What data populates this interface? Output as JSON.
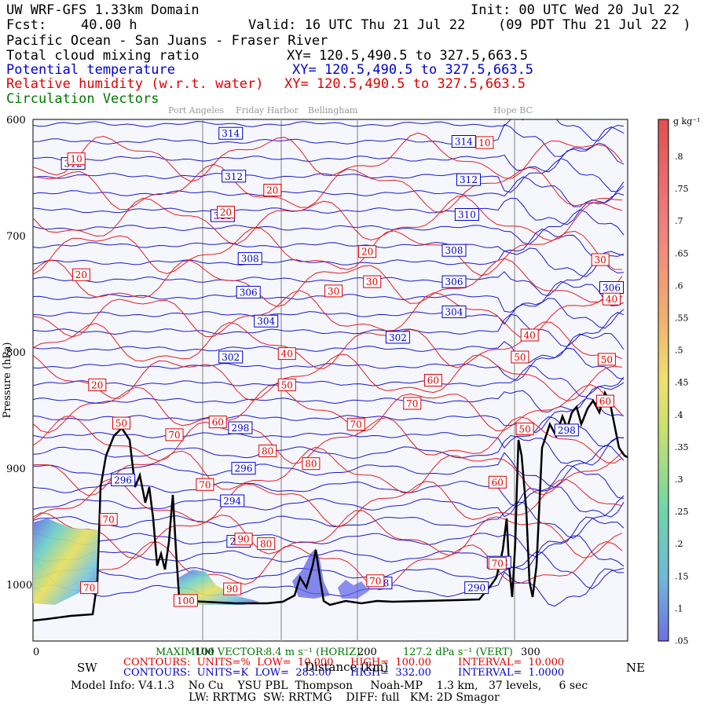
{
  "header": {
    "model": "UW WRF-GFS 1.33km Domain",
    "init": "Init: 00 UTC Wed 20 Jul 22",
    "fcst_label": "Fcst:",
    "fcst_value": "40.00 h",
    "valid": "Valid: 16 UTC Thu 21 Jul 22",
    "valid_local": "(09 PDT Thu 21 Jul 22  )",
    "region": "Pacific Ocean - San Juans - Fraser River",
    "field1": "Total cloud mixing ratio",
    "field1_xy": "XY= 120.5,490.5 to 327.5,663.5",
    "field2": "Potential temperature",
    "field2_xy": "XY= 120.5,490.5 to 327.5,663.5",
    "field3": "Relative humidity (w.r.t. water)",
    "field3_xy": "XY= 120.5,490.5 to 327.5,663.5",
    "field4": "Circulation Vectors"
  },
  "places": [
    "Port Angeles",
    "Friday Harbor",
    "Bellingham",
    "Hope BC"
  ],
  "footer": {
    "vector_prefix": "MAXIMUM VECTOR:",
    "vector_horiz": "8.4 m s⁻¹ (HORIZ)",
    "vector_vert": "127.2 dPa s⁻¹ (VERT)",
    "contours_red": "CONTOURS:  UNITS=%  LOW=  10.000",
    "contours_red_high": "HIGH=  100.00",
    "contours_red_int": "INTERVAL=  10.000",
    "contours_blue": "CONTOURS:  UNITS=K  LOW=  283.00",
    "contours_blue_high": "HIGH=  332.00",
    "contours_blue_int": "INTERVAL=  1.0000",
    "left_dir": "SW",
    "right_dir": "NE",
    "xlabel": "Distance (km)",
    "model_info": "Model Info: V4.1.3    No Cu    YSU PBL  Thompson     Noah-MP    1.3 km,   37 levels,     6 sec",
    "model_info2": "LW: RRTMG  SW: RRTMG    DIFF: full   KM: 2D Smagor"
  },
  "colorbar": {
    "unit": "g kg⁻¹",
    "ticks": [
      ".8",
      ".75",
      ".7",
      ".65",
      ".6",
      ".55",
      ".5",
      ".45",
      ".4",
      ".35",
      ".3",
      ".25",
      ".2",
      ".15",
      ".1",
      ".05"
    ]
  },
  "chart_data": {
    "type": "cross-section contour",
    "ylabel": "Pressure (hPa)",
    "xlabel": "Distance (km)",
    "y_ticks": [
      "600",
      "700",
      "800",
      "900",
      "1000"
    ],
    "x_ticks": [
      "0",
      "100",
      "200",
      "300"
    ],
    "ylim": [
      1050,
      600
    ],
    "xlim": [
      0,
      370
    ],
    "theta_labels": [
      {
        "v": "314",
        "x": 123,
        "p": 612
      },
      {
        "v": "314",
        "x": 268,
        "p": 619
      },
      {
        "v": "312",
        "x": 25,
        "p": 638
      },
      {
        "v": "312",
        "x": 125,
        "p": 649
      },
      {
        "v": "312",
        "x": 271,
        "p": 652
      },
      {
        "v": "310",
        "x": 118,
        "p": 683
      },
      {
        "v": "310",
        "x": 270,
        "p": 682
      },
      {
        "v": "308",
        "x": 135,
        "p": 720
      },
      {
        "v": "308",
        "x": 262,
        "p": 713
      },
      {
        "v": "306",
        "x": 134,
        "p": 749
      },
      {
        "v": "306",
        "x": 262,
        "p": 740
      },
      {
        "v": "306",
        "x": 360,
        "p": 745
      },
      {
        "v": "304",
        "x": 145,
        "p": 774
      },
      {
        "v": "304",
        "x": 262,
        "p": 766
      },
      {
        "v": "302",
        "x": 123,
        "p": 805
      },
      {
        "v": "302",
        "x": 227,
        "p": 788
      },
      {
        "v": "298",
        "x": 129,
        "p": 866
      },
      {
        "v": "298",
        "x": 332,
        "p": 868
      },
      {
        "v": "296",
        "x": 56,
        "p": 911
      },
      {
        "v": "296",
        "x": 131,
        "p": 901
      },
      {
        "v": "294",
        "x": 124,
        "p": 929
      },
      {
        "v": "290",
        "x": 128,
        "p": 964
      },
      {
        "v": "288",
        "x": 216,
        "p": 1000
      },
      {
        "v": "290",
        "x": 276,
        "p": 1004
      },
      {
        "v": "292",
        "x": 290,
        "p": 982
      }
    ],
    "rh_labels": [
      {
        "v": "10",
        "x": 281,
        "p": 620
      },
      {
        "v": "10",
        "x": 27,
        "p": 634
      },
      {
        "v": "20",
        "x": 149,
        "p": 661
      },
      {
        "v": "20",
        "x": 120,
        "p": 680
      },
      {
        "v": "20",
        "x": 208,
        "p": 714
      },
      {
        "v": "20",
        "x": 30,
        "p": 734
      },
      {
        "v": "30",
        "x": 211,
        "p": 740
      },
      {
        "v": "30",
        "x": 187,
        "p": 748
      },
      {
        "v": "30",
        "x": 353,
        "p": 721
      },
      {
        "v": "40",
        "x": 360,
        "p": 755
      },
      {
        "v": "40",
        "x": 309,
        "p": 786
      },
      {
        "v": "40",
        "x": 158,
        "p": 802
      },
      {
        "v": "50",
        "x": 303,
        "p": 805
      },
      {
        "v": "50",
        "x": 357,
        "p": 807
      },
      {
        "v": "20",
        "x": 40,
        "p": 829
      },
      {
        "v": "50",
        "x": 158,
        "p": 829
      },
      {
        "v": "60",
        "x": 249,
        "p": 825
      },
      {
        "v": "70",
        "x": 236,
        "p": 845
      },
      {
        "v": "60",
        "x": 356,
        "p": 843
      },
      {
        "v": "50",
        "x": 55,
        "p": 862
      },
      {
        "v": "60",
        "x": 115,
        "p": 861
      },
      {
        "v": "70",
        "x": 88,
        "p": 872
      },
      {
        "v": "70",
        "x": 201,
        "p": 863
      },
      {
        "v": "50",
        "x": 306,
        "p": 867
      },
      {
        "v": "80",
        "x": 146,
        "p": 886
      },
      {
        "v": "80",
        "x": 173,
        "p": 897
      },
      {
        "v": "70",
        "x": 107,
        "p": 915
      },
      {
        "v": "60",
        "x": 289,
        "p": 913
      },
      {
        "v": "70",
        "x": 47,
        "p": 945
      },
      {
        "v": "90",
        "x": 131,
        "p": 962
      },
      {
        "v": "80",
        "x": 145,
        "p": 966
      },
      {
        "v": "70",
        "x": 289,
        "p": 983
      },
      {
        "v": "70",
        "x": 213,
        "p": 998
      },
      {
        "v": "90",
        "x": 124,
        "p": 1005
      },
      {
        "v": "70",
        "x": 35,
        "p": 1004
      },
      {
        "v": "100",
        "x": 95,
        "p": 1015
      }
    ]
  }
}
